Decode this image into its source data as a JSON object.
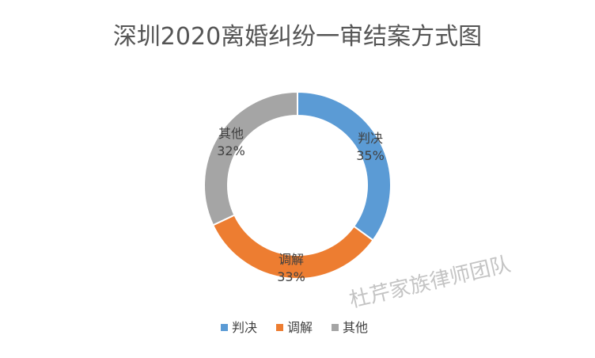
{
  "chart_data": {
    "type": "pie",
    "title": "深圳2020离婚纠纷一审结案方式图",
    "categories": [
      "判决",
      "调解",
      "其他"
    ],
    "values": [
      35,
      33,
      32
    ],
    "percent_labels": [
      "35%",
      "33%",
      "32%"
    ],
    "colors": [
      "#5b9bd5",
      "#ed7d31",
      "#a5a5a5"
    ],
    "donut": true,
    "legend_position": "bottom"
  },
  "watermark": "杜芹家族律师团队"
}
